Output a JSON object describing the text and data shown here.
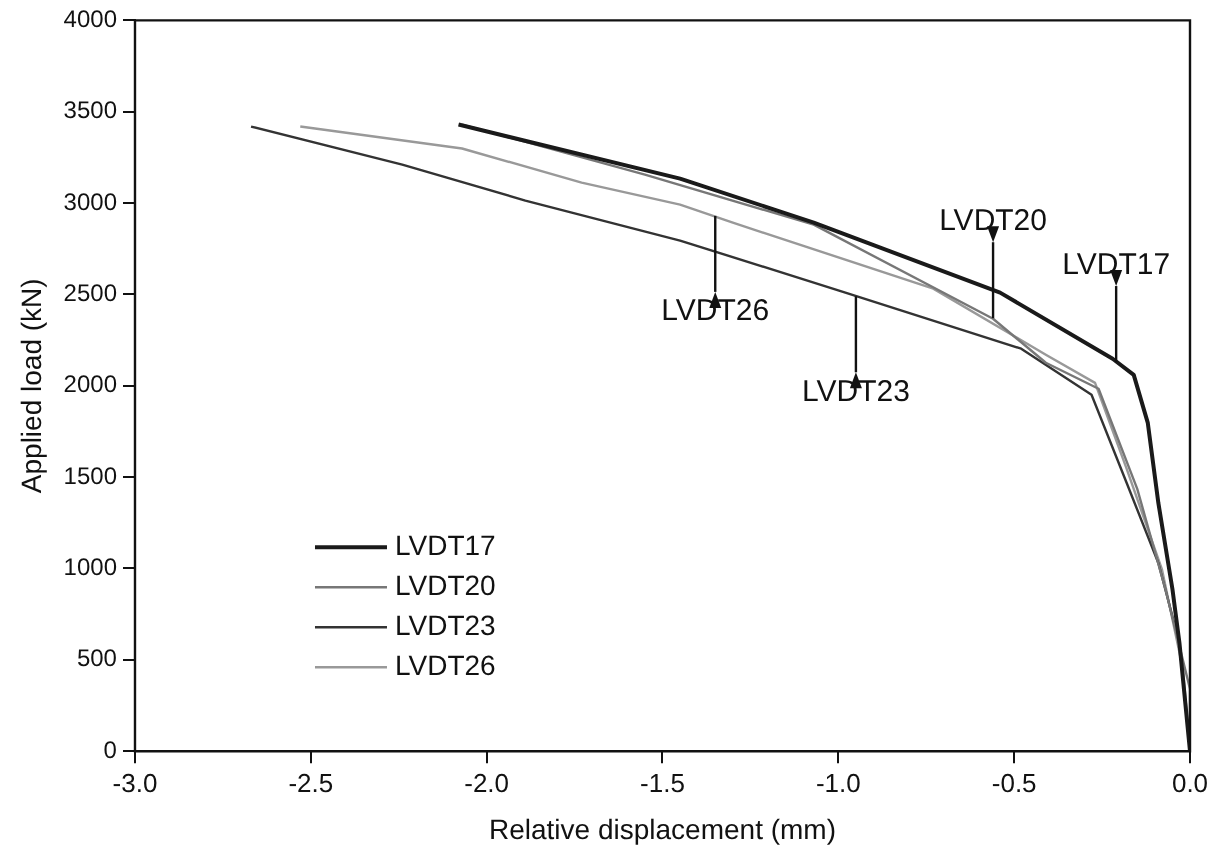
{
  "chart_data": {
    "type": "line",
    "xlabel": "Relative displacement (mm)",
    "ylabel": "Applied load (kN)",
    "xlim": [
      -3.0,
      0.0
    ],
    "xticks": [
      {
        "value": -3,
        "label": "-3.0"
      },
      -2.5,
      {
        "value": -2,
        "label": "-2.0"
      },
      -1.5,
      {
        "value": -1,
        "label": "-1.0"
      },
      -0.5,
      {
        "value": 0,
        "label": "0.0"
      }
    ],
    "ylim": [
      0,
      4000
    ],
    "yticks": [
      0,
      500,
      1000,
      1500,
      2000,
      2500,
      3000,
      3500,
      4000
    ],
    "grid": false,
    "legend": "bottom left",
    "marker": "none",
    "line_style": "solid",
    "series": [
      {
        "name": "LVDT17",
        "color": "#1a1a1a",
        "x": [
          -2.08,
          -1.45,
          -1.07,
          -0.54,
          -0.22,
          -0.16,
          -0.12,
          -0.09,
          -0.05,
          -0.03,
          0
        ],
        "values": [
          3430,
          3134,
          2893,
          2510,
          2148,
          2060,
          1797,
          1359,
          888,
          592,
          0
        ]
      },
      {
        "name": "LVDT20",
        "color": "#777777",
        "x": [
          -2.07,
          -1.55,
          -1.07,
          -0.56,
          -0.41,
          -0.26,
          -0.15,
          -0.07,
          0,
          0
        ],
        "values": [
          3430,
          3156,
          2882,
          2367,
          2126,
          1984,
          1436,
          888,
          340,
          0
        ]
      },
      {
        "name": "LVDT23",
        "color": "#333333",
        "x": [
          -2.67,
          -2.24,
          -1.89,
          -1.45,
          -0.98,
          -0.48,
          -0.28,
          -0.18,
          -0.09,
          -0.03,
          0
        ],
        "values": [
          3419,
          3211,
          3014,
          2795,
          2510,
          2203,
          1951,
          1468,
          1030,
          592,
          0
        ]
      },
      {
        "name": "LVDT26",
        "color": "#999999",
        "x": [
          -2.53,
          -2.07,
          -1.73,
          -1.45,
          -1.3,
          -0.73,
          -0.41,
          -0.27,
          -0.18,
          -0.08,
          -0.02,
          0
        ],
        "values": [
          3419,
          3299,
          3112,
          2992,
          2893,
          2532,
          2170,
          2016,
          1545,
          997,
          449,
          0
        ]
      }
    ],
    "annotations": [
      {
        "text": "LVDT26",
        "x": -1.35,
        "y": 2930
      },
      {
        "text": "LVDT23",
        "x": -0.95,
        "y": 2490
      },
      {
        "text": "LVDT20",
        "x": -0.56,
        "y": 2370
      },
      {
        "text": "LVDT17",
        "x": -0.21,
        "y": 2130
      }
    ]
  }
}
